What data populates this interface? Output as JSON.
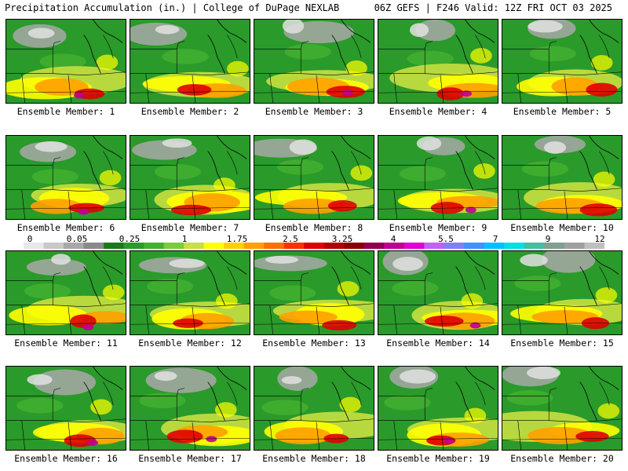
{
  "header": {
    "left": "Precipitation Accumulation (in.) | College of DuPage NEXLAB",
    "right": "06Z GEFS | F246 Valid: 12Z FRI OCT 03 2025"
  },
  "members": [
    {
      "label": "Ensemble Member: 1"
    },
    {
      "label": "Ensemble Member: 2"
    },
    {
      "label": "Ensemble Member: 3"
    },
    {
      "label": "Ensemble Member: 4"
    },
    {
      "label": "Ensemble Member: 5"
    },
    {
      "label": "Ensemble Member: 6"
    },
    {
      "label": "Ensemble Member: 7"
    },
    {
      "label": "Ensemble Member: 8"
    },
    {
      "label": "Ensemble Member: 9"
    },
    {
      "label": "Ensemble Member: 10"
    },
    {
      "label": "Ensemble Member: 11"
    },
    {
      "label": "Ensemble Member: 12"
    },
    {
      "label": "Ensemble Member: 13"
    },
    {
      "label": "Ensemble Member: 14"
    },
    {
      "label": "Ensemble Member: 15"
    },
    {
      "label": "Ensemble Member: 16"
    },
    {
      "label": "Ensemble Member: 17"
    },
    {
      "label": "Ensemble Member: 18"
    },
    {
      "label": "Ensemble Member: 19"
    },
    {
      "label": "Ensemble Member: 20"
    }
  ],
  "colorbar": {
    "ticks": [
      "0",
      "0.05",
      "0.25",
      "1",
      "1.75",
      "2.5",
      "3.25",
      "4",
      "5.5",
      "7",
      "9",
      "12"
    ],
    "colors": [
      "#e8e8e8",
      "#c8c8c8",
      "#a8a8a8",
      "#8a8a8a",
      "#1a7a1a",
      "#2a9a2a",
      "#44b030",
      "#7acc3a",
      "#c8e040",
      "#ffff00",
      "#ffd000",
      "#ffa000",
      "#ff7000",
      "#ff3000",
      "#e00000",
      "#b00000",
      "#8a0000",
      "#900050",
      "#c00090",
      "#e000d0",
      "#c060ff",
      "#8080ff",
      "#4090ff",
      "#00c0ff",
      "#00e0e0",
      "#40c0a0",
      "#80a090",
      "#a0a0a0",
      "#c0c0c0"
    ]
  }
}
